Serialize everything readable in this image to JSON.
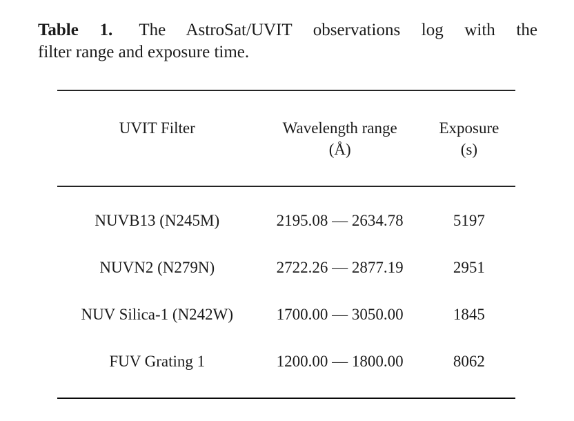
{
  "colors": {
    "background": "#ffffff",
    "text": "#1b1b1b",
    "rule": "#242424"
  },
  "caption": {
    "label": "Table 1.",
    "line1": "The AstroSat/UVIT observations log with the",
    "line2": "filter range and exposure time."
  },
  "table": {
    "columns": [
      {
        "label": "UVIT Filter",
        "unit": ""
      },
      {
        "label": "Wavelength range",
        "unit": "(Å)"
      },
      {
        "label": "Exposure",
        "unit": "(s)"
      }
    ],
    "rows": [
      {
        "filter": "NUVB13 (N245M)",
        "wavelength_range": "2195.08 — 2634.78",
        "exposure": "5197"
      },
      {
        "filter": "NUVN2 (N279N)",
        "wavelength_range": "2722.26 — 2877.19",
        "exposure": "2951"
      },
      {
        "filter": "NUV Silica-1 (N242W)",
        "wavelength_range": "1700.00 — 3050.00",
        "exposure": "1845"
      },
      {
        "filter": "FUV Grating 1",
        "wavelength_range": "1200.00 — 1800.00",
        "exposure": "8062"
      }
    ]
  }
}
